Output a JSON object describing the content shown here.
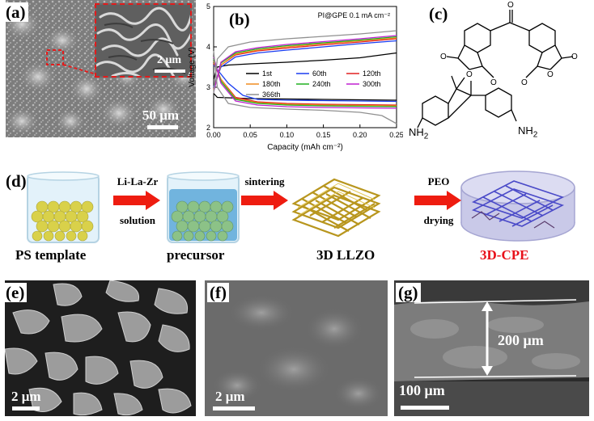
{
  "panels": {
    "a": {
      "label": "(a)",
      "scale_main": "50 μm",
      "scale_inset": "2 μm"
    },
    "b": {
      "label": "(b)"
    },
    "c": {
      "label": "(c)",
      "amine_left": "NH",
      "amine_left_sub": "2",
      "amine_right": "NH",
      "amine_right_sub": "2"
    },
    "d": {
      "label": "(d)",
      "steps": [
        {
          "caption": "PS template",
          "caption_color": "#000000"
        },
        {
          "caption": "precursor",
          "caption_color": "#000000"
        },
        {
          "caption": "3D LLZO",
          "caption_color": "#000000"
        },
        {
          "caption": "3D-CPE",
          "caption_color": "#e8101a"
        }
      ],
      "arrows": [
        {
          "top": "Li-La-Zr",
          "bottom": "solution"
        },
        {
          "top": "sintering",
          "bottom": ""
        },
        {
          "top": "PEO",
          "bottom": "drying"
        }
      ],
      "arrow_color": "#ee1c10"
    },
    "e": {
      "label": "(e)",
      "scale": "2 μm"
    },
    "f": {
      "label": "(f)",
      "scale": "2 μm"
    },
    "g": {
      "label": "(g)",
      "scale": "100 μm",
      "thickness": "200 μm"
    }
  },
  "chart_data": {
    "type": "line",
    "title": "",
    "annotation": "PI@GPE   0.1 mA cm⁻²",
    "xlabel": "Capacity (mAh cm⁻²)",
    "ylabel": "Voltage (V)",
    "xlim": [
      0.0,
      0.25
    ],
    "ylim": [
      2,
      5
    ],
    "xticks": [
      "0.00",
      "0.05",
      "0.10",
      "0.15",
      "0.20",
      "0.25"
    ],
    "yticks": [
      "2",
      "3",
      "4",
      "5"
    ],
    "legend": "top-right, inside",
    "series": [
      {
        "name": "1st",
        "color": "#000000",
        "charge": [
          [
            0,
            3.2
          ],
          [
            0.005,
            3.5
          ],
          [
            0.02,
            3.55
          ],
          [
            0.05,
            3.58
          ],
          [
            0.1,
            3.62
          ],
          [
            0.15,
            3.67
          ],
          [
            0.2,
            3.73
          ],
          [
            0.25,
            3.85
          ]
        ],
        "discharge": [
          [
            0,
            2.85
          ],
          [
            0.005,
            2.75
          ],
          [
            0.05,
            2.72
          ],
          [
            0.1,
            2.71
          ],
          [
            0.15,
            2.7
          ],
          [
            0.2,
            2.69
          ],
          [
            0.25,
            2.68
          ]
        ]
      },
      {
        "name": "60th",
        "color": "#1a3cf0",
        "charge": [
          [
            0,
            3.0
          ],
          [
            0.01,
            3.5
          ],
          [
            0.03,
            3.75
          ],
          [
            0.06,
            3.85
          ],
          [
            0.1,
            3.92
          ],
          [
            0.15,
            4.0
          ],
          [
            0.2,
            4.08
          ],
          [
            0.25,
            4.15
          ]
        ],
        "discharge": [
          [
            0,
            3.55
          ],
          [
            0.02,
            3.1
          ],
          [
            0.04,
            2.8
          ],
          [
            0.06,
            2.7
          ],
          [
            0.1,
            2.68
          ],
          [
            0.15,
            2.67
          ],
          [
            0.2,
            2.66
          ],
          [
            0.25,
            2.65
          ]
        ]
      },
      {
        "name": "120th",
        "color": "#e02020",
        "charge": [
          [
            0,
            2.95
          ],
          [
            0.01,
            3.55
          ],
          [
            0.03,
            3.8
          ],
          [
            0.06,
            3.9
          ],
          [
            0.1,
            3.97
          ],
          [
            0.15,
            4.05
          ],
          [
            0.2,
            4.12
          ],
          [
            0.25,
            4.2
          ]
        ],
        "discharge": [
          [
            0,
            3.6
          ],
          [
            0.01,
            3.2
          ],
          [
            0.03,
            2.75
          ],
          [
            0.06,
            2.64
          ],
          [
            0.1,
            2.6
          ],
          [
            0.15,
            2.58
          ],
          [
            0.2,
            2.57
          ],
          [
            0.25,
            2.56
          ]
        ]
      },
      {
        "name": "180th",
        "color": "#f08a20",
        "charge": [
          [
            0,
            2.92
          ],
          [
            0.01,
            3.55
          ],
          [
            0.03,
            3.82
          ],
          [
            0.06,
            3.92
          ],
          [
            0.1,
            4.0
          ],
          [
            0.15,
            4.08
          ],
          [
            0.2,
            4.15
          ],
          [
            0.25,
            4.22
          ]
        ],
        "discharge": [
          [
            0,
            3.65
          ],
          [
            0.01,
            3.2
          ],
          [
            0.03,
            2.72
          ],
          [
            0.06,
            2.62
          ],
          [
            0.1,
            2.58
          ],
          [
            0.15,
            2.56
          ],
          [
            0.2,
            2.55
          ],
          [
            0.25,
            2.54
          ]
        ]
      },
      {
        "name": "240th",
        "color": "#20b020",
        "charge": [
          [
            0,
            2.9
          ],
          [
            0.01,
            3.6
          ],
          [
            0.03,
            3.85
          ],
          [
            0.06,
            3.95
          ],
          [
            0.1,
            4.03
          ],
          [
            0.15,
            4.1
          ],
          [
            0.2,
            4.17
          ],
          [
            0.25,
            4.25
          ]
        ],
        "discharge": [
          [
            0,
            3.7
          ],
          [
            0.01,
            3.15
          ],
          [
            0.03,
            2.7
          ],
          [
            0.06,
            2.6
          ],
          [
            0.1,
            2.56
          ],
          [
            0.15,
            2.54
          ],
          [
            0.2,
            2.53
          ],
          [
            0.25,
            2.52
          ]
        ]
      },
      {
        "name": "300th",
        "color": "#c020d0",
        "charge": [
          [
            0,
            2.88
          ],
          [
            0.01,
            3.62
          ],
          [
            0.03,
            3.88
          ],
          [
            0.06,
            3.98
          ],
          [
            0.1,
            4.06
          ],
          [
            0.15,
            4.13
          ],
          [
            0.2,
            4.2
          ],
          [
            0.25,
            4.28
          ]
        ],
        "discharge": [
          [
            0,
            3.75
          ],
          [
            0.01,
            3.1
          ],
          [
            0.03,
            2.66
          ],
          [
            0.06,
            2.56
          ],
          [
            0.1,
            2.52
          ],
          [
            0.15,
            2.5
          ],
          [
            0.2,
            2.49
          ],
          [
            0.25,
            2.48
          ]
        ]
      },
      {
        "name": "366th",
        "color": "#909090",
        "charge": [
          [
            0,
            2.85
          ],
          [
            0.005,
            3.7
          ],
          [
            0.02,
            4.0
          ],
          [
            0.05,
            4.12
          ],
          [
            0.1,
            4.2
          ],
          [
            0.15,
            4.26
          ],
          [
            0.2,
            4.32
          ],
          [
            0.25,
            4.4
          ]
        ],
        "discharge": [
          [
            0,
            3.9
          ],
          [
            0.005,
            3.0
          ],
          [
            0.02,
            2.6
          ],
          [
            0.05,
            2.5
          ],
          [
            0.1,
            2.46
          ],
          [
            0.15,
            2.43
          ],
          [
            0.2,
            2.38
          ],
          [
            0.23,
            2.3
          ],
          [
            0.25,
            2.1
          ]
        ]
      }
    ]
  }
}
